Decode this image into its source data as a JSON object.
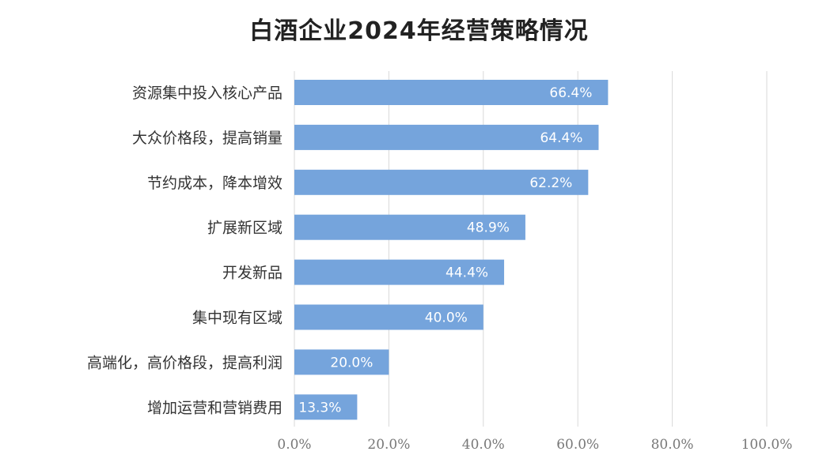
{
  "chart_data": {
    "type": "bar",
    "orientation": "horizontal",
    "title": "白酒企业2024年经营策略情况",
    "categories": [
      "资源集中投入核心产品",
      "大众价格段，提高销量",
      "节约成本，降本增效",
      "扩展新区域",
      "开发新品",
      "集中现有区域",
      "高端化，高价格段，提高利润",
      "增加运营和营销费用"
    ],
    "values": [
      66.4,
      64.4,
      62.2,
      48.9,
      44.4,
      40.0,
      20.0,
      13.3
    ],
    "value_labels": [
      "66.4%",
      "64.4%",
      "62.2%",
      "48.9%",
      "44.4%",
      "40.0%",
      "20.0%",
      "13.3%"
    ],
    "xlim": [
      0,
      100
    ],
    "x_ticks": [
      0,
      20,
      40,
      60,
      80,
      100
    ],
    "x_tick_labels": [
      "0.0%",
      "20.0%",
      "40.0%",
      "60.0%",
      "80.0%",
      "100.0%"
    ],
    "grid": "vertical",
    "colors": {
      "bar": "#75a4dc",
      "grid": "#d9d9d9",
      "data_label": "#ffffff"
    }
  }
}
